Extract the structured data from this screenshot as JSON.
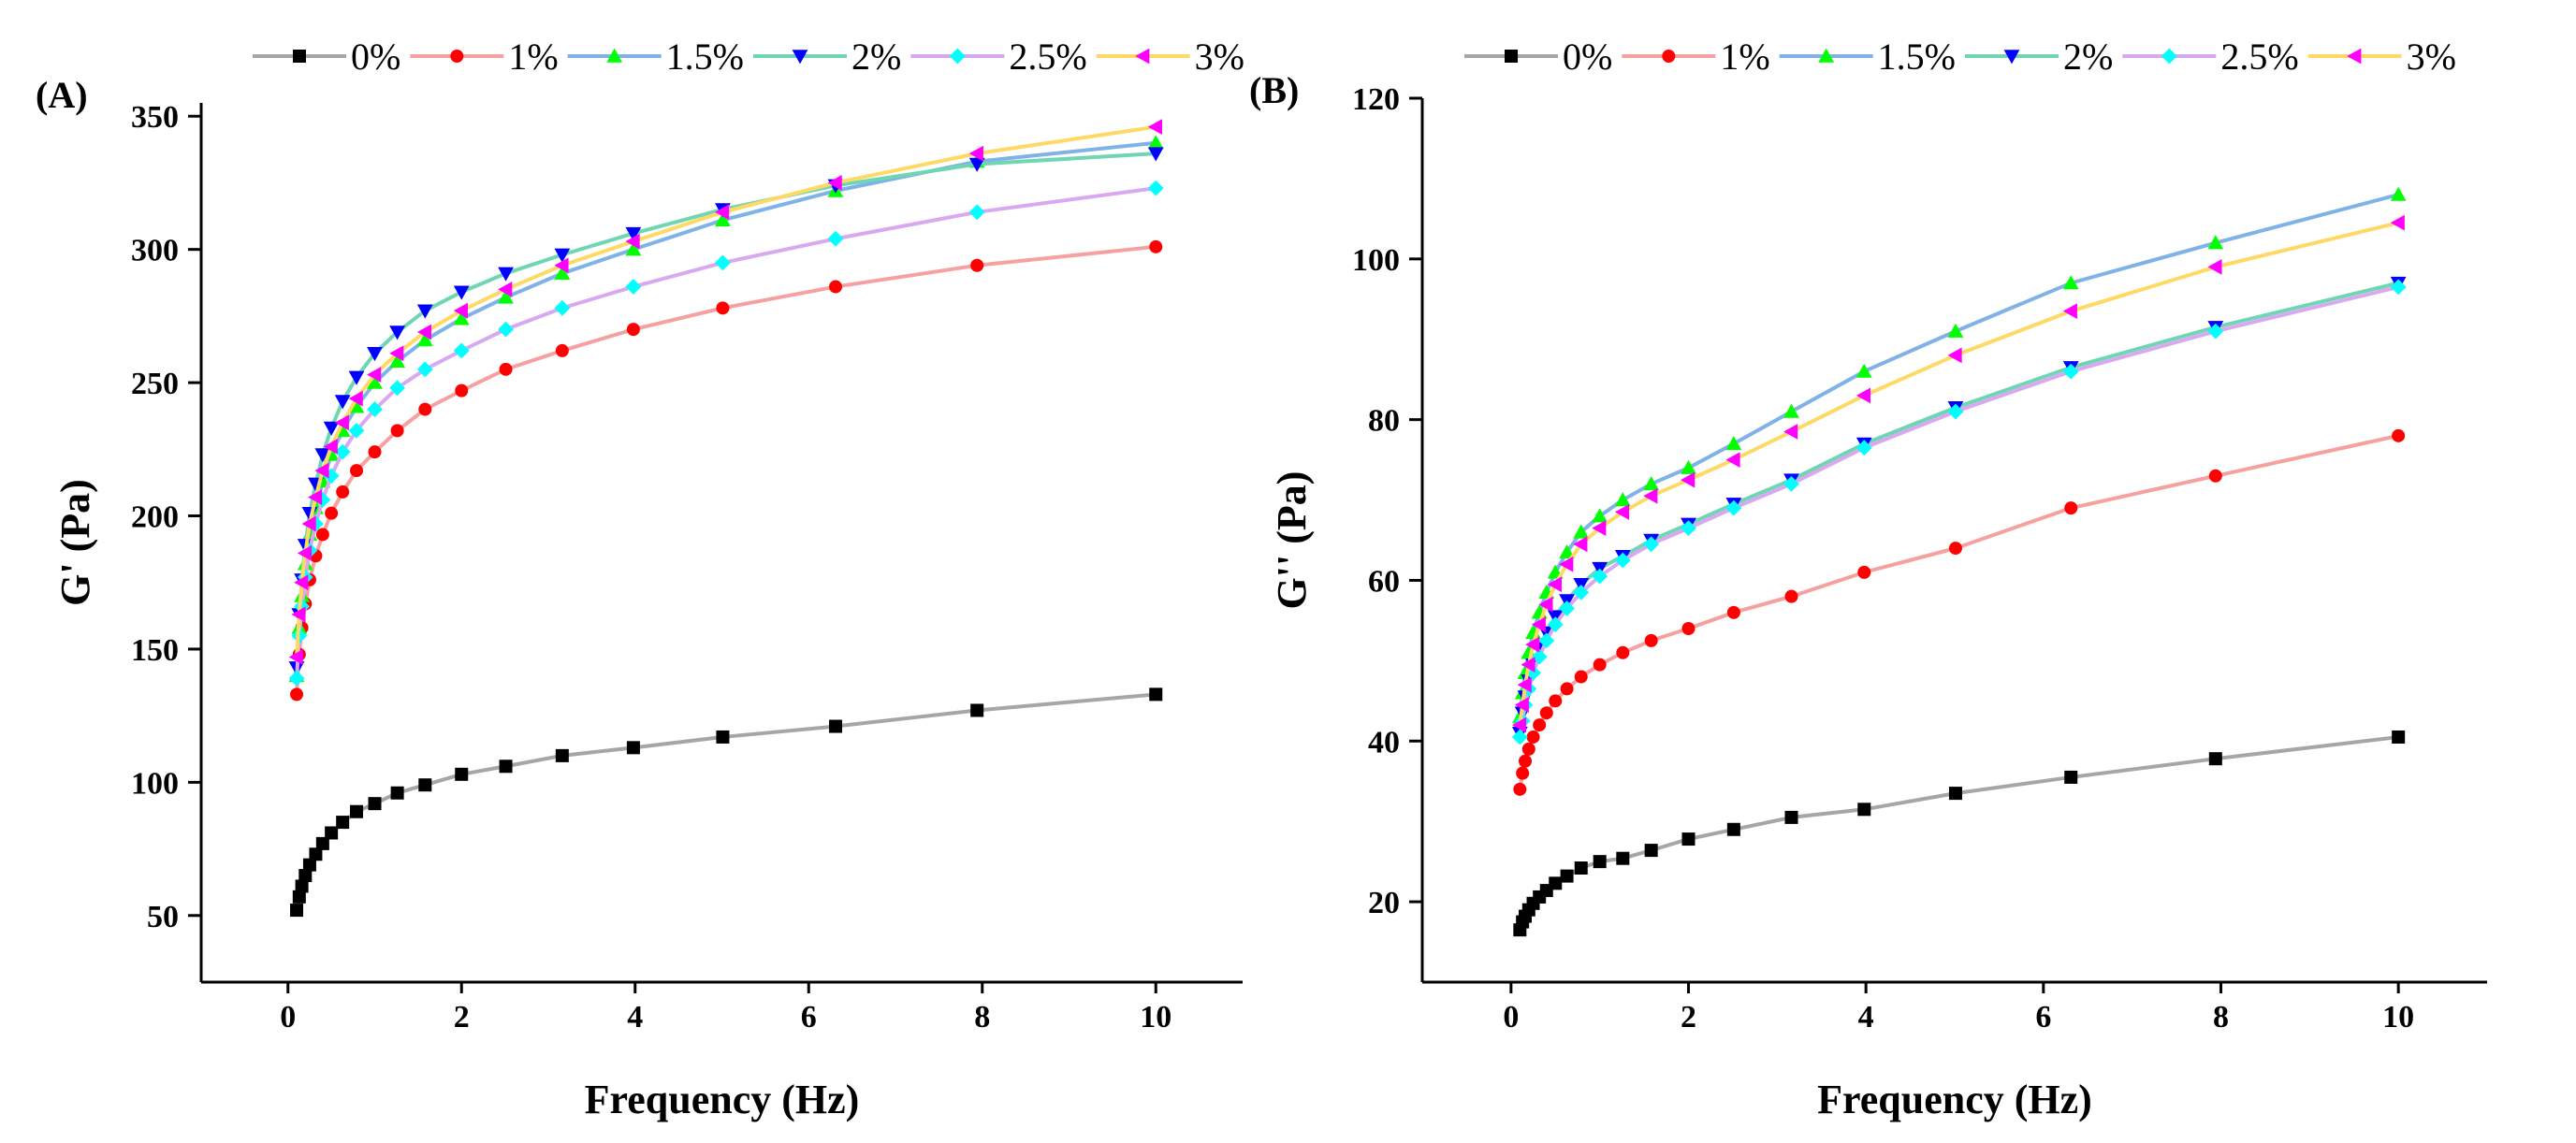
{
  "series_style": [
    {
      "line": "#a6a6a6",
      "marker": "#000000",
      "shape": "square"
    },
    {
      "line": "#f7a0a0",
      "marker": "#ff0000",
      "shape": "circle"
    },
    {
      "line": "#7fb2e6",
      "marker": "#00ff00",
      "shape": "triangle-up"
    },
    {
      "line": "#6fd6b3",
      "marker": "#0000ff",
      "shape": "triangle-down"
    },
    {
      "line": "#d8a8f0",
      "marker": "#00ffff",
      "shape": "diamond"
    },
    {
      "line": "#ffd966",
      "marker": "#ff00ff",
      "shape": "triangle-left"
    }
  ],
  "chart_data": [
    {
      "type": "line",
      "panel_label": "(A)",
      "xlabel": "Frequency (Hz)",
      "ylabel": "G' (Pa)",
      "xlim": [
        -1,
        11
      ],
      "ylim": [
        25,
        355
      ],
      "xticks": [
        0,
        2,
        4,
        6,
        8,
        10
      ],
      "yticks": [
        50,
        100,
        150,
        200,
        250,
        300,
        350
      ],
      "legend_position": "top",
      "x": [
        0.1,
        0.13,
        0.16,
        0.2,
        0.25,
        0.32,
        0.4,
        0.5,
        0.63,
        0.79,
        1.0,
        1.26,
        1.58,
        2.0,
        2.51,
        3.16,
        3.98,
        5.01,
        6.31,
        7.94,
        10.0
      ],
      "series": [
        {
          "name": "0%",
          "values": [
            52,
            57,
            61,
            65,
            69,
            73,
            77,
            81,
            85,
            89,
            92,
            96,
            99,
            103,
            106,
            110,
            113,
            117,
            121,
            127,
            133
          ]
        },
        {
          "name": "1%",
          "values": [
            133,
            148,
            158,
            167,
            176,
            185,
            193,
            201,
            209,
            217,
            224,
            232,
            240,
            247,
            255,
            262,
            270,
            278,
            286,
            294,
            301
          ]
        },
        {
          "name": "1.5%",
          "values": [
            140,
            158,
            170,
            182,
            193,
            203,
            213,
            223,
            232,
            241,
            250,
            258,
            266,
            274,
            282,
            291,
            300,
            311,
            322,
            333,
            340
          ]
        },
        {
          "name": "2%",
          "values": [
            143,
            163,
            176,
            189,
            201,
            212,
            223,
            233,
            243,
            252,
            261,
            269,
            277,
            284,
            291,
            298,
            306,
            315,
            324,
            332,
            336
          ]
        },
        {
          "name": "2.5%",
          "values": [
            139,
            155,
            166,
            177,
            187,
            197,
            206,
            215,
            224,
            232,
            240,
            248,
            255,
            262,
            270,
            278,
            286,
            295,
            304,
            314,
            323
          ]
        },
        {
          "name": "3%",
          "values": [
            147,
            163,
            175,
            186,
            197,
            207,
            217,
            226,
            235,
            244,
            253,
            261,
            269,
            277,
            285,
            294,
            303,
            314,
            325,
            336,
            346
          ]
        }
      ]
    },
    {
      "type": "line",
      "panel_label": "(B)",
      "xlabel": "Frequency (Hz)",
      "ylabel": "G'' (Pa)",
      "xlim": [
        -1,
        11
      ],
      "ylim": [
        10,
        120
      ],
      "xticks": [
        0,
        2,
        4,
        6,
        8,
        10
      ],
      "yticks": [
        20,
        40,
        60,
        80,
        100,
        120
      ],
      "legend_position": "top",
      "x": [
        0.1,
        0.13,
        0.16,
        0.2,
        0.25,
        0.32,
        0.4,
        0.5,
        0.63,
        0.79,
        1.0,
        1.26,
        1.58,
        2.0,
        2.51,
        3.16,
        3.98,
        5.01,
        6.31,
        7.94,
        10.0
      ],
      "series": [
        {
          "name": "0%",
          "values": [
            16.5,
            17.5,
            18.2,
            19.0,
            19.8,
            20.6,
            21.4,
            22.3,
            23.2,
            24.2,
            25.0,
            25.4,
            26.4,
            27.8,
            29.0,
            30.5,
            31.5,
            33.5,
            35.5,
            37.8,
            40.5
          ]
        },
        {
          "name": "1%",
          "values": [
            34,
            36,
            37.5,
            39,
            40.5,
            42,
            43.5,
            45,
            46.5,
            48,
            49.5,
            51,
            52.5,
            54,
            56,
            58,
            61,
            64,
            69,
            73,
            78
          ]
        },
        {
          "name": "1.5%",
          "values": [
            43,
            46,
            48.5,
            51,
            53.5,
            56,
            58.5,
            61,
            63.5,
            66,
            68,
            70,
            72,
            74,
            77,
            81,
            86,
            91,
            97,
            102,
            108
          ]
        },
        {
          "name": "2%",
          "values": [
            41,
            43.5,
            45.5,
            47.5,
            49.5,
            51.5,
            53.5,
            55.5,
            57.5,
            59.5,
            61.5,
            63,
            65,
            67,
            69.5,
            72.5,
            77,
            81.5,
            86.5,
            91.5,
            97
          ]
        },
        {
          "name": "2.5%",
          "values": [
            40.5,
            42.5,
            44.5,
            46.5,
            48.5,
            50.5,
            52.5,
            54.5,
            56.5,
            58.5,
            60.5,
            62.5,
            64.5,
            66.5,
            69,
            72,
            76.5,
            81,
            86,
            91,
            96.5
          ]
        },
        {
          "name": "3%",
          "values": [
            42,
            44.5,
            47,
            49.5,
            52,
            54.5,
            57,
            59.5,
            62,
            64.5,
            66.5,
            68.5,
            70.5,
            72.5,
            75,
            78.5,
            83,
            88,
            93.5,
            99,
            104.5
          ]
        }
      ]
    }
  ]
}
